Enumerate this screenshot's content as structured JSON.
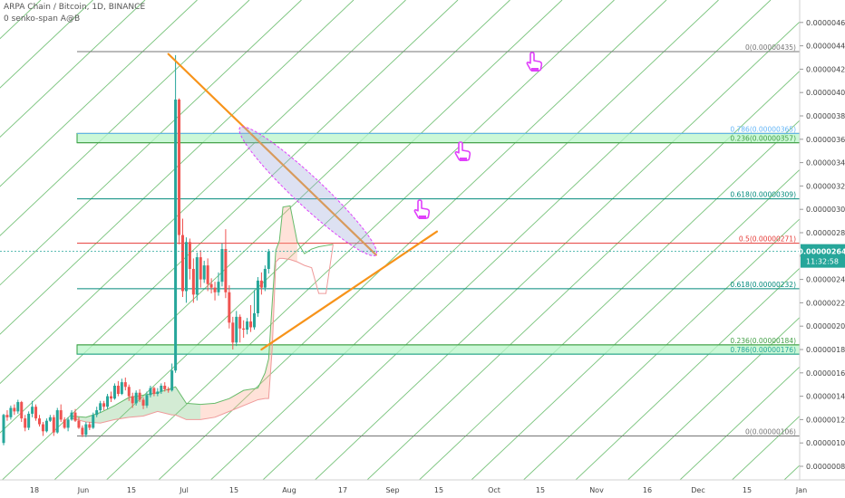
{
  "header": {
    "symbol_line": "ARPA Chain / Bitcoin, 1D, BINANCE",
    "indicator_line": "0 senko-span A@B"
  },
  "colors": {
    "up": "#26a69a",
    "down": "#ef5350",
    "grid_diag": "#4caf50",
    "trend": "#f7931a",
    "fib_red": "#e53935",
    "fib_teal": "#00897b",
    "fib_gray": "#757575",
    "zone_fill": "#b9f6ca",
    "zone_stroke": "#2e9e3e",
    "cursor": "#e040fb",
    "price_badge": "#26a69a"
  },
  "chart_data": {
    "type": "candlestick",
    "title": "ARPA Chain / Bitcoin, 1D, BINANCE",
    "y_ticks": [
      "0.00000080",
      "0.00000100",
      "0.00000120",
      "0.00000140",
      "0.00000160",
      "0.00000180",
      "0.00000200",
      "0.00000220",
      "0.00000240",
      "0.00000260",
      "0.00000280",
      "0.00000300",
      "0.00000320",
      "0.00000340",
      "0.00000360",
      "0.00000380",
      "0.00000400",
      "0.00000420",
      "0.00000440",
      "0.00000460"
    ],
    "ylim": [
      7.6e-07,
      4.76e-06
    ],
    "x_ticks": [
      "18",
      "Jun",
      "15",
      "Jul",
      "15",
      "Aug",
      "17",
      "Sep",
      "15",
      "Oct",
      "15",
      "Nov",
      "16",
      "Dec",
      "15",
      "Jan"
    ],
    "fib_levels": [
      {
        "label": "0(0.00000435)",
        "value": 4.35e-06,
        "color": "#757575"
      },
      {
        "label": "0.786(0.00000365)",
        "value": 3.65e-06,
        "color": "#64b5f6"
      },
      {
        "label": "0.236(0.00000357)",
        "value": 3.57e-06,
        "color": "#43a047"
      },
      {
        "label": "0.618(0.00000309)",
        "value": 3.09e-06,
        "color": "#00897b"
      },
      {
        "label": "0.5(0.00000271)",
        "value": 2.71e-06,
        "color": "#e53935"
      },
      {
        "label": "0.618(0.00000232)",
        "value": 2.32e-06,
        "color": "#00897b"
      },
      {
        "label": "0.236(0.00000184)",
        "value": 1.84e-06,
        "color": "#43a047"
      },
      {
        "label": "0.786(0.00000176)",
        "value": 1.76e-06,
        "color": "#26a69a"
      },
      {
        "label": "0(0.00000106)",
        "value": 1.06e-06,
        "color": "#757575"
      }
    ],
    "zones": [
      {
        "from": 3.57e-06,
        "to": 3.65e-06
      },
      {
        "from": 1.76e-06,
        "to": 1.84e-06
      }
    ],
    "current_price": "0.00000264",
    "countdown": "11:32:58",
    "candles": [
      [
        0,
        1.0,
        1.24,
        0.98,
        1.25
      ],
      [
        1,
        1.24,
        1.22,
        1.19,
        1.28
      ],
      [
        2,
        1.22,
        1.3,
        1.2,
        1.32
      ],
      [
        3,
        1.3,
        1.27,
        1.24,
        1.33
      ],
      [
        4,
        1.27,
        1.35,
        1.25,
        1.37
      ],
      [
        5,
        1.35,
        1.21,
        1.18,
        1.36
      ],
      [
        6,
        1.21,
        1.13,
        1.1,
        1.24
      ],
      [
        7,
        1.13,
        1.25,
        1.11,
        1.27
      ],
      [
        8,
        1.25,
        1.31,
        1.22,
        1.36
      ],
      [
        9,
        1.31,
        1.21,
        1.19,
        1.33
      ],
      [
        10,
        1.21,
        1.16,
        1.14,
        1.24
      ],
      [
        11,
        1.16,
        1.1,
        1.06,
        1.18
      ],
      [
        12,
        1.1,
        1.19,
        1.09,
        1.21
      ],
      [
        13,
        1.19,
        1.22,
        1.18,
        1.24
      ],
      [
        14,
        1.22,
        1.09,
        1.06,
        1.24
      ],
      [
        15,
        1.09,
        1.28,
        1.08,
        1.3
      ],
      [
        16,
        1.28,
        1.2,
        1.18,
        1.33
      ],
      [
        17,
        1.2,
        1.13,
        1.12,
        1.22
      ],
      [
        18,
        1.13,
        1.2,
        1.1,
        1.22
      ],
      [
        19,
        1.2,
        1.26,
        1.19,
        1.28
      ],
      [
        20,
        1.26,
        1.19,
        1.18,
        1.29
      ],
      [
        21,
        1.19,
        1.13,
        1.12,
        1.22
      ],
      [
        22,
        1.13,
        1.07,
        1.05,
        1.15
      ],
      [
        23,
        1.07,
        1.16,
        1.05,
        1.18
      ],
      [
        24,
        1.16,
        1.13,
        1.11,
        1.18
      ],
      [
        25,
        1.13,
        1.24,
        1.12,
        1.26
      ],
      [
        26,
        1.24,
        1.28,
        1.22,
        1.31
      ],
      [
        27,
        1.28,
        1.34,
        1.26,
        1.36
      ],
      [
        28,
        1.34,
        1.31,
        1.28,
        1.36
      ],
      [
        29,
        1.31,
        1.4,
        1.29,
        1.42
      ],
      [
        30,
        1.4,
        1.38,
        1.35,
        1.44
      ],
      [
        31,
        1.38,
        1.49,
        1.37,
        1.51
      ],
      [
        32,
        1.49,
        1.42,
        1.4,
        1.53
      ],
      [
        33,
        1.42,
        1.52,
        1.41,
        1.55
      ],
      [
        34,
        1.52,
        1.48,
        1.45,
        1.56
      ],
      [
        35,
        1.48,
        1.4,
        1.36,
        1.5
      ],
      [
        36,
        1.4,
        1.34,
        1.3,
        1.43
      ],
      [
        37,
        1.34,
        1.43,
        1.32,
        1.45
      ],
      [
        38,
        1.43,
        1.37,
        1.35,
        1.46
      ],
      [
        39,
        1.37,
        1.32,
        1.29,
        1.39
      ],
      [
        40,
        1.32,
        1.41,
        1.3,
        1.44
      ],
      [
        41,
        1.41,
        1.47,
        1.39,
        1.49
      ],
      [
        42,
        1.47,
        1.42,
        1.4,
        1.48
      ],
      [
        43,
        1.42,
        1.44,
        1.4,
        1.47
      ],
      [
        44,
        1.44,
        1.49,
        1.42,
        1.51
      ],
      [
        45,
        1.49,
        1.46,
        1.44,
        1.52
      ],
      [
        46,
        1.46,
        1.45,
        1.43,
        1.48
      ],
      [
        47,
        1.45,
        1.62,
        1.44,
        1.68
      ],
      [
        48,
        1.62,
        3.94,
        1.6,
        4.32
      ],
      [
        49,
        3.94,
        2.78,
        2.7,
        3.95
      ],
      [
        50,
        2.78,
        2.3,
        2.25,
        2.92
      ],
      [
        51,
        2.3,
        2.72,
        2.2,
        2.76
      ],
      [
        52,
        2.72,
        2.49,
        2.4,
        2.75
      ],
      [
        53,
        2.49,
        2.27,
        2.2,
        2.58
      ],
      [
        54,
        2.27,
        2.59,
        2.22,
        2.63
      ],
      [
        55,
        2.59,
        2.4,
        2.33,
        2.65
      ],
      [
        56,
        2.4,
        2.52,
        2.37,
        2.56
      ],
      [
        57,
        2.52,
        2.36,
        2.3,
        2.58
      ],
      [
        58,
        2.36,
        2.33,
        2.28,
        2.41
      ],
      [
        59,
        2.33,
        2.29,
        2.22,
        2.38
      ],
      [
        60,
        2.29,
        2.38,
        2.26,
        2.46
      ],
      [
        61,
        2.38,
        2.66,
        2.34,
        2.71
      ],
      [
        62,
        2.66,
        2.29,
        2.24,
        2.83
      ],
      [
        63,
        2.29,
        2.03,
        1.98,
        2.35
      ],
      [
        64,
        2.03,
        1.86,
        1.8,
        2.08
      ],
      [
        65,
        1.86,
        2.08,
        1.83,
        2.13
      ],
      [
        66,
        2.08,
        1.98,
        1.86,
        2.1
      ],
      [
        67,
        1.98,
        1.97,
        1.9,
        2.05
      ],
      [
        68,
        1.97,
        2.04,
        1.93,
        2.07
      ],
      [
        69,
        2.04,
        1.99,
        1.95,
        2.18
      ],
      [
        70,
        1.99,
        2.11,
        1.97,
        2.31
      ],
      [
        71,
        2.11,
        2.39,
        2.08,
        2.42
      ],
      [
        72,
        2.39,
        2.33,
        2.27,
        2.46
      ],
      [
        73,
        2.33,
        2.49,
        2.3,
        2.52
      ],
      [
        74,
        2.49,
        2.64,
        2.45,
        2.66
      ]
    ],
    "cloud_a": [
      [
        19,
        1.23
      ],
      [
        23,
        1.22
      ],
      [
        27,
        1.26
      ],
      [
        31,
        1.32
      ],
      [
        35,
        1.39
      ],
      [
        39,
        1.41
      ],
      [
        43,
        1.43
      ],
      [
        47,
        1.47
      ],
      [
        48,
        1.48
      ],
      [
        51,
        1.34
      ],
      [
        55,
        1.33
      ],
      [
        59,
        1.34
      ],
      [
        63,
        1.38
      ],
      [
        67,
        1.45
      ],
      [
        71,
        1.47
      ],
      [
        73,
        1.6
      ],
      [
        74,
        1.72
      ],
      [
        75,
        2.2
      ],
      [
        76,
        2.65
      ],
      [
        77,
        2.73
      ],
      [
        78,
        3.02
      ],
      [
        80,
        3.03
      ],
      [
        82,
        2.72
      ],
      [
        84,
        2.62
      ],
      [
        86,
        2.66
      ],
      [
        88,
        2.68
      ],
      [
        90,
        2.69
      ],
      [
        92,
        2.7
      ]
    ],
    "cloud_b": [
      [
        19,
        1.21
      ],
      [
        23,
        1.18
      ],
      [
        27,
        1.17
      ],
      [
        31,
        1.2
      ],
      [
        35,
        1.22
      ],
      [
        39,
        1.23
      ],
      [
        43,
        1.27
      ],
      [
        47,
        1.24
      ],
      [
        48,
        1.24
      ],
      [
        51,
        1.2
      ],
      [
        55,
        1.2
      ],
      [
        59,
        1.22
      ],
      [
        63,
        1.27
      ],
      [
        67,
        1.32
      ],
      [
        71,
        1.37
      ],
      [
        73,
        1.38
      ],
      [
        74,
        1.38
      ],
      [
        75,
        1.81
      ],
      [
        76,
        2.55
      ],
      [
        77,
        2.58
      ],
      [
        78,
        2.58
      ],
      [
        80,
        2.57
      ],
      [
        82,
        2.55
      ],
      [
        84,
        2.52
      ],
      [
        86,
        2.5
      ],
      [
        88,
        2.28
      ],
      [
        90,
        2.28
      ],
      [
        92,
        2.7
      ]
    ],
    "trend_lines": [
      {
        "x1": 46,
        "y1": 4.33,
        "x2": 104,
        "y2": 2.61
      },
      {
        "x1": 72,
        "y1": 1.8,
        "x2": 121,
        "y2": 2.81
      }
    ],
    "ellipse": {
      "x1": 66,
      "y1": 3.7,
      "x2": 104,
      "y2": 2.61
    }
  }
}
